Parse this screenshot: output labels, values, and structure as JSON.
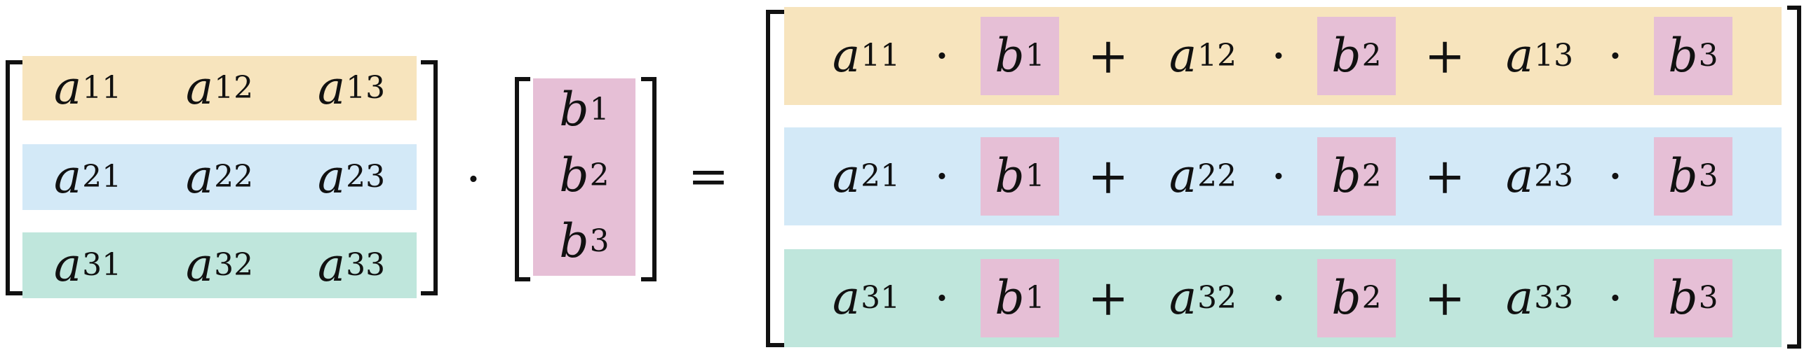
{
  "colors": {
    "row1": "#f7e4bd",
    "row2": "#d3e9f7",
    "row3": "#bfe6dc",
    "vector": "#e6bfd6",
    "bracket": "#111111"
  },
  "matrix_a": {
    "rows": [
      [
        {
          "base": "a",
          "sub": "11"
        },
        {
          "base": "a",
          "sub": "12"
        },
        {
          "base": "a",
          "sub": "13"
        }
      ],
      [
        {
          "base": "a",
          "sub": "21"
        },
        {
          "base": "a",
          "sub": "22"
        },
        {
          "base": "a",
          "sub": "23"
        }
      ],
      [
        {
          "base": "a",
          "sub": "31"
        },
        {
          "base": "a",
          "sub": "32"
        },
        {
          "base": "a",
          "sub": "33"
        }
      ]
    ]
  },
  "vector_b": {
    "entries": [
      {
        "base": "b",
        "sub": "1"
      },
      {
        "base": "b",
        "sub": "2"
      },
      {
        "base": "b",
        "sub": "3"
      }
    ]
  },
  "operators": {
    "dot": "·",
    "equals": "=",
    "plus": "+"
  },
  "result": {
    "rows": [
      {
        "terms": [
          {
            "a": "11",
            "b": "1"
          },
          {
            "a": "12",
            "b": "2"
          },
          {
            "a": "13",
            "b": "3"
          }
        ]
      },
      {
        "terms": [
          {
            "a": "21",
            "b": "1"
          },
          {
            "a": "22",
            "b": "2"
          },
          {
            "a": "23",
            "b": "3"
          }
        ]
      },
      {
        "terms": [
          {
            "a": "31",
            "b": "1"
          },
          {
            "a": "32",
            "b": "2"
          },
          {
            "a": "33",
            "b": "3"
          }
        ]
      }
    ]
  }
}
